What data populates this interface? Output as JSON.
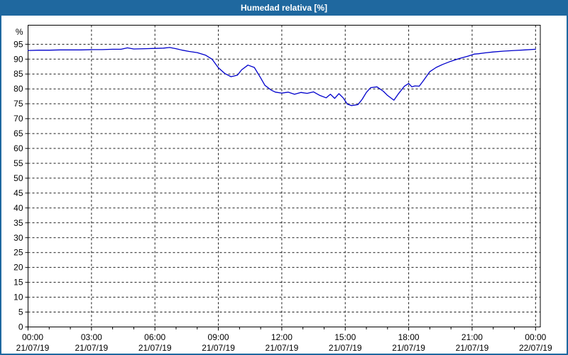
{
  "window": {
    "title": "Humedad relativa [%]"
  },
  "colors": {
    "titlebar_bg": "#1f689f",
    "titlebar_text": "#ffffff",
    "frame": "#1f689f",
    "background": "#ffffff",
    "plot_border": "#000000",
    "grid": "#1a1a1a",
    "text": "#000000",
    "line": "#0000cc"
  },
  "chart_data": {
    "type": "line",
    "title": "Humedad relativa [%]",
    "ylabel_unit": "%",
    "ylim": [
      0,
      101.4
    ],
    "xlim_hours": [
      0,
      24.25
    ],
    "grid": "dashed",
    "legend": "none",
    "yticks": [
      0,
      5,
      10,
      15,
      20,
      25,
      30,
      35,
      40,
      45,
      50,
      55,
      60,
      65,
      70,
      75,
      80,
      85,
      90,
      95
    ],
    "xticks": [
      {
        "hour": 0,
        "time": "00:00",
        "date": "21/07/19"
      },
      {
        "hour": 3,
        "time": "03:00",
        "date": "21/07/19"
      },
      {
        "hour": 6,
        "time": "06:00",
        "date": "21/07/19"
      },
      {
        "hour": 9,
        "time": "09:00",
        "date": "21/07/19"
      },
      {
        "hour": 12,
        "time": "12:00",
        "date": "21/07/19"
      },
      {
        "hour": 15,
        "time": "15:00",
        "date": "21/07/19"
      },
      {
        "hour": 18,
        "time": "18:00",
        "date": "21/07/19"
      },
      {
        "hour": 21,
        "time": "21:00",
        "date": "21/07/19"
      },
      {
        "hour": 24,
        "time": "00:00",
        "date": "22/07/19"
      }
    ],
    "series": [
      {
        "name": "Humedad relativa",
        "x_hours": [
          0,
          0.5,
          1,
          1.5,
          2,
          2.5,
          3,
          3.5,
          4,
          4.4,
          4.7,
          5,
          5.5,
          6,
          6.4,
          6.7,
          7,
          7.3,
          7.6,
          8,
          8.4,
          8.7,
          9,
          9.3,
          9.6,
          9.9,
          10.1,
          10.4,
          10.7,
          11,
          11.2,
          11.5,
          11.7,
          12,
          12.3,
          12.6,
          12.9,
          13.2,
          13.5,
          13.8,
          14.1,
          14.3,
          14.5,
          14.7,
          14.9,
          15.1,
          15.3,
          15.6,
          15.8,
          16,
          16.2,
          16.5,
          16.8,
          17,
          17.3,
          17.5,
          17.8,
          18,
          18.15,
          18.3,
          18.5,
          18.7,
          19,
          19.3,
          19.6,
          20,
          20.4,
          20.8,
          21.1,
          21.3,
          21.6,
          22,
          22.5,
          23,
          23.5,
          24
        ],
        "values": [
          92.9,
          93.0,
          93.0,
          93.1,
          93.1,
          93.1,
          93.2,
          93.2,
          93.3,
          93.3,
          93.8,
          93.4,
          93.5,
          93.6,
          93.7,
          93.9,
          93.5,
          93.0,
          92.6,
          92.2,
          91.3,
          90.0,
          87.1,
          85.2,
          84.1,
          84.6,
          86.4,
          88.0,
          87.2,
          83.7,
          81.2,
          79.6,
          78.9,
          78.6,
          78.9,
          78.2,
          78.8,
          78.5,
          79.0,
          77.8,
          77.0,
          78.2,
          76.8,
          78.4,
          77.0,
          74.9,
          74.4,
          74.7,
          76.5,
          78.8,
          80.4,
          80.7,
          79.2,
          77.8,
          76.2,
          78.2,
          80.9,
          81.8,
          80.7,
          81.0,
          80.9,
          82.8,
          85.8,
          87.2,
          88.2,
          89.3,
          90.2,
          91.0,
          91.7,
          91.8,
          92.1,
          92.4,
          92.7,
          92.9,
          93.1,
          93.3
        ]
      }
    ]
  }
}
